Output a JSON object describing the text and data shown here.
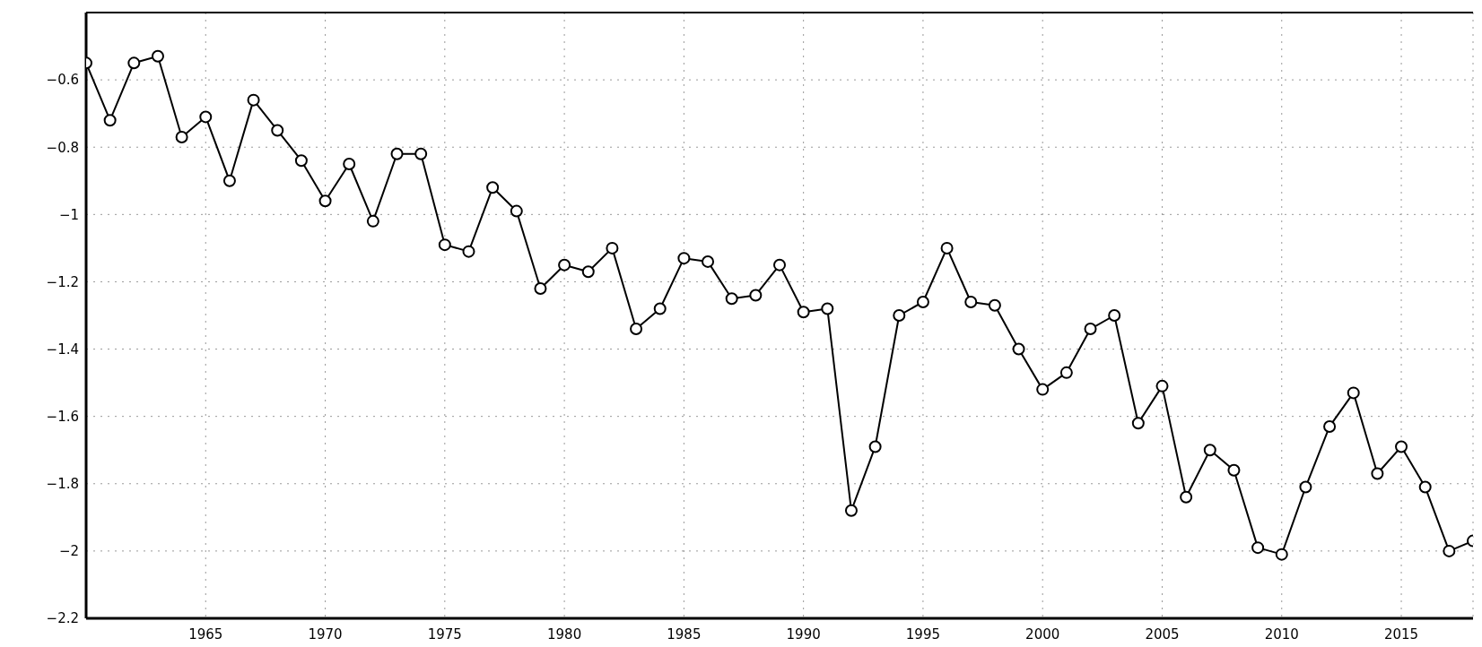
{
  "chart_data": {
    "type": "line",
    "x": [
      1960,
      1961,
      1962,
      1963,
      1964,
      1965,
      1966,
      1967,
      1968,
      1969,
      1970,
      1971,
      1972,
      1973,
      1974,
      1975,
      1976,
      1977,
      1978,
      1979,
      1980,
      1981,
      1982,
      1983,
      1984,
      1985,
      1986,
      1987,
      1988,
      1989,
      1990,
      1991,
      1992,
      1993,
      1994,
      1995,
      1996,
      1997,
      1998,
      1999,
      2000,
      2001,
      2002,
      2003,
      2004,
      2005,
      2006,
      2007,
      2008,
      2009,
      2010,
      2011,
      2012,
      2013,
      2014,
      2015,
      2016,
      2017,
      2018
    ],
    "series": [
      {
        "color": "#000000",
        "values": [
          -0.55,
          -0.72,
          -0.55,
          -0.53,
          -0.77,
          -0.71,
          -0.9,
          -0.66,
          -0.75,
          -0.84,
          -0.96,
          -0.85,
          -1.02,
          -0.82,
          -0.82,
          -1.09,
          -1.11,
          -0.92,
          -0.99,
          -1.22,
          -1.15,
          -1.17,
          -1.1,
          -1.34,
          -1.28,
          -1.13,
          -1.14,
          -1.25,
          -1.24,
          -1.15,
          -1.29,
          -1.28,
          -1.88,
          -1.69,
          -1.3,
          -1.26,
          -1.1,
          -1.26,
          -1.27,
          -1.4,
          -1.52,
          -1.47,
          -1.34,
          -1.3,
          -1.62,
          -1.51,
          -1.84,
          -1.7,
          -1.76,
          -1.99,
          -2.01,
          -1.81,
          -1.63,
          -1.53,
          -1.77,
          -1.69,
          -1.81,
          -2.0,
          -1.97
        ]
      }
    ],
    "xlim": [
      1960,
      2018
    ],
    "xticks": [
      1965,
      1970,
      1975,
      1980,
      1985,
      1990,
      1995,
      2000,
      2005,
      2010,
      2015
    ],
    "ylim": [
      -2.2,
      -0.4
    ],
    "yticks": [
      {
        "value": -2.2,
        "label": "−2.2"
      },
      {
        "value": -2,
        "label": "−2"
      },
      {
        "value": -1.8,
        "label": "−1.8"
      },
      {
        "value": -1.6,
        "label": "−1.6"
      },
      {
        "value": -1.4,
        "label": "−1.4"
      },
      {
        "value": -1.2,
        "label": "−1.2"
      },
      {
        "value": -1,
        "label": "−1"
      },
      {
        "value": -0.8,
        "label": "−0.8"
      },
      {
        "value": -0.6,
        "label": "−0.6"
      }
    ],
    "grid": true,
    "marker": "circle",
    "line_style": "solid",
    "legend": false
  }
}
